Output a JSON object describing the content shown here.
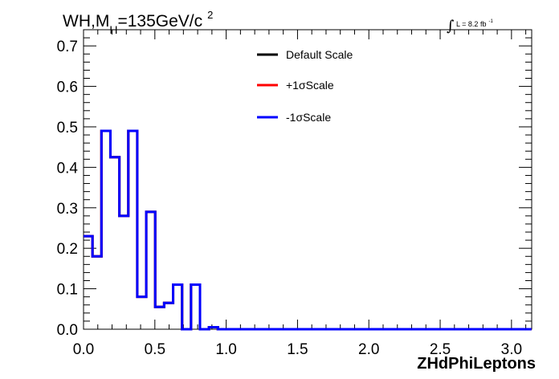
{
  "title": {
    "main": "WH,M",
    "sub": "H",
    "rest": "=135GeV/c",
    "sup": "2"
  },
  "lumi": {
    "integral": "∫",
    "text": "L = 8.2 fb",
    "sup": "-1"
  },
  "colors": {
    "default": "#000000",
    "plus": "#ff0000",
    "minus": "#0000ff"
  },
  "chart_data": {
    "type": "line",
    "style": "step-histogram",
    "xlabel": "ZHdPhiLeptons",
    "ylabel": "",
    "xlim": [
      0.0,
      3.14159
    ],
    "ylim": [
      0.0,
      0.74
    ],
    "x_ticks": [
      "0.0",
      "0.5",
      "1.0",
      "1.5",
      "2.0",
      "2.5",
      "3.0"
    ],
    "x_tick_values": [
      0.0,
      0.5,
      1.0,
      1.5,
      2.0,
      2.5,
      3.0
    ],
    "y_ticks": [
      "0.0",
      "0.1",
      "0.2",
      "0.3",
      "0.4",
      "0.5",
      "0.6",
      "0.7"
    ],
    "y_tick_values": [
      0.0,
      0.1,
      0.2,
      0.3,
      0.4,
      0.5,
      0.6,
      0.7
    ],
    "bin_width": 0.0628,
    "bin_values": [
      0.23,
      0.18,
      0.49,
      0.425,
      0.28,
      0.49,
      0.08,
      0.29,
      0.055,
      0.065,
      0.11,
      0.0,
      0.11,
      0.0,
      0.005,
      0.0,
      0.0,
      0.0,
      0.0,
      0.0,
      0.0,
      0.0,
      0.0,
      0.0,
      0.0,
      0.0,
      0.0,
      0.0,
      0.0,
      0.0,
      0.0,
      0.0,
      0.0,
      0.0,
      0.0,
      0.0,
      0.0,
      0.0,
      0.0,
      0.0,
      0.0,
      0.0,
      0.0,
      0.0,
      0.0,
      0.0,
      0.0,
      0.0,
      0.0,
      0.0
    ],
    "legend": [
      {
        "label": "Default Scale",
        "color": "#000000"
      },
      {
        "label": "+1σScale",
        "color": "#ff0000"
      },
      {
        "label": "-1σScale",
        "color": "#0000ff"
      }
    ],
    "legend_position": "top-center",
    "grid": false
  }
}
